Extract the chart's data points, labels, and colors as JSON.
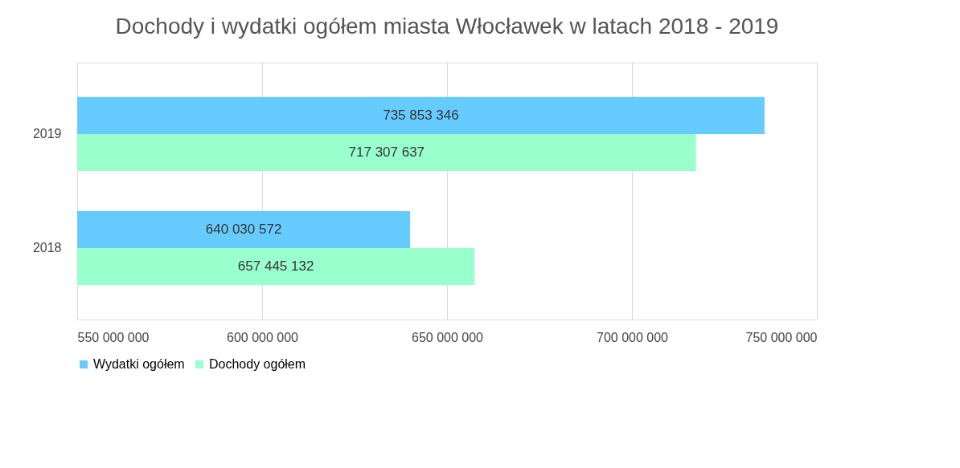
{
  "chart_data": {
    "type": "bar",
    "orientation": "horizontal",
    "title": "Dochody i wydatki ogółem miasta Włocławek w latach 2018 - 2019",
    "categories": [
      "2019",
      "2018"
    ],
    "series": [
      {
        "name": "Wydatki ogółem",
        "color": "#66ccff",
        "values": [
          735853346,
          640030572
        ],
        "value_labels": [
          "735 853 346",
          "640 030 572"
        ]
      },
      {
        "name": "Dochody ogółem",
        "color": "#99ffcc",
        "values": [
          717307637,
          657445132
        ],
        "value_labels": [
          "717 307 637",
          "657 445 132"
        ]
      }
    ],
    "xlim": [
      550000000,
      750000000
    ],
    "xticks": [
      {
        "value": 550000000,
        "label": "550 000 000"
      },
      {
        "value": 600000000,
        "label": "600 000 000"
      },
      {
        "value": 650000000,
        "label": "650 000 000"
      },
      {
        "value": 700000000,
        "label": "700 000 000"
      },
      {
        "value": 750000000,
        "label": "750 000 000"
      }
    ],
    "grid": "x",
    "legend": "bottom"
  }
}
